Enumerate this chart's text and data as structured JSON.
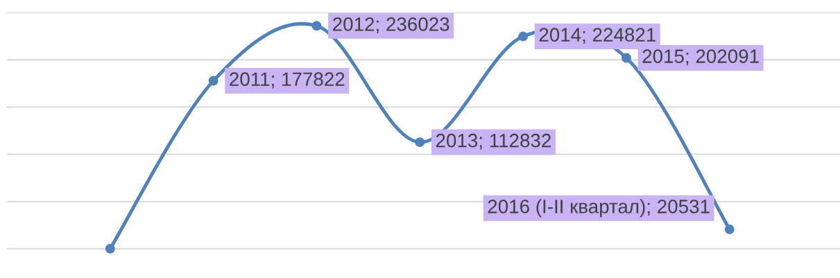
{
  "chart_data": {
    "type": "line",
    "categories": [
      null,
      null,
      null,
      null,
      null,
      null,
      null
    ],
    "series": [
      {
        "color": "#4f81bd",
        "values": [
          0,
          177822,
          236023,
          112832,
          224821,
          202091,
          20531
        ],
        "value_labels": [
          null,
          "2011; 177822",
          "2012; 236023",
          "2013; 112832",
          "2014; 224821",
          "2015; 202091",
          "2016 (I-II квартал); 20531"
        ]
      }
    ],
    "grid": "y",
    "marker": "circle",
    "line_style": "solid",
    "legend": false
  }
}
